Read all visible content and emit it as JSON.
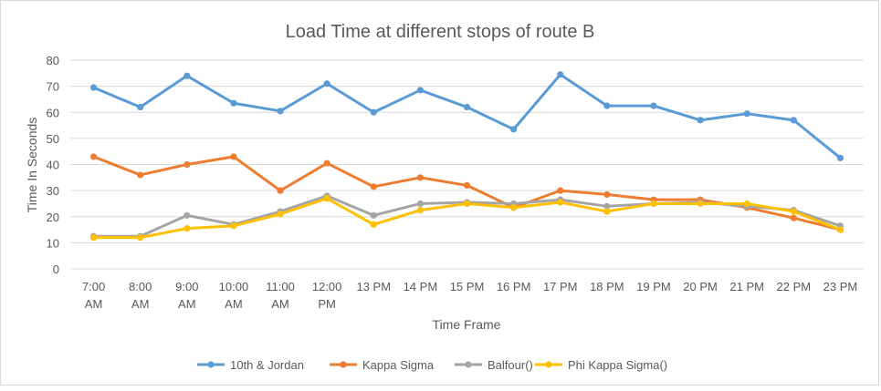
{
  "chart_data": {
    "type": "line",
    "title": "Load Time at different stops of route B",
    "xlabel": "Time Frame",
    "ylabel": "Time In Seconds",
    "ylim": [
      0,
      80
    ],
    "yticks": [
      0,
      10,
      20,
      30,
      40,
      50,
      60,
      70,
      80
    ],
    "grid": true,
    "legend_position": "bottom",
    "categories": [
      [
        "7:00",
        "AM"
      ],
      [
        "8:00",
        "AM"
      ],
      [
        "9:00",
        "AM"
      ],
      [
        "10:00",
        "AM"
      ],
      [
        "11:00",
        "AM"
      ],
      [
        "12:00",
        "PM"
      ],
      [
        "13 PM"
      ],
      [
        "14 PM"
      ],
      [
        "15 PM"
      ],
      [
        "16 PM"
      ],
      [
        "17 PM"
      ],
      [
        "18 PM"
      ],
      [
        "19 PM"
      ],
      [
        "20 PM"
      ],
      [
        "21 PM"
      ],
      [
        "22 PM"
      ],
      [
        "23 PM"
      ]
    ],
    "series": [
      {
        "name": "10th & Jordan",
        "color": "#5b9bd5",
        "values": [
          69.5,
          62,
          74,
          63.5,
          60.5,
          71,
          60,
          68.5,
          62,
          53.5,
          74.5,
          62.5,
          62.5,
          57,
          59.5,
          57,
          42.5
        ]
      },
      {
        "name": "Kappa Sigma",
        "color": "#ed7d31",
        "values": [
          43,
          36,
          40,
          43,
          30,
          40.5,
          31.5,
          35,
          32,
          23.5,
          30,
          28.5,
          26.5,
          26.5,
          23.5,
          19.5,
          15
        ]
      },
      {
        "name": "Balfour()",
        "color": "#a5a5a5",
        "values": [
          12.5,
          12.5,
          20.5,
          17,
          22,
          28,
          20.5,
          25,
          25.5,
          25,
          26.5,
          24,
          25,
          25.5,
          24,
          22.5,
          16.5
        ]
      },
      {
        "name": "Phi Kappa Sigma()",
        "color": "#ffc000",
        "values": [
          12,
          12,
          15.5,
          16.5,
          21,
          27,
          17,
          22.5,
          25,
          23.5,
          25.5,
          22,
          25,
          25,
          25,
          22,
          15
        ]
      }
    ]
  }
}
